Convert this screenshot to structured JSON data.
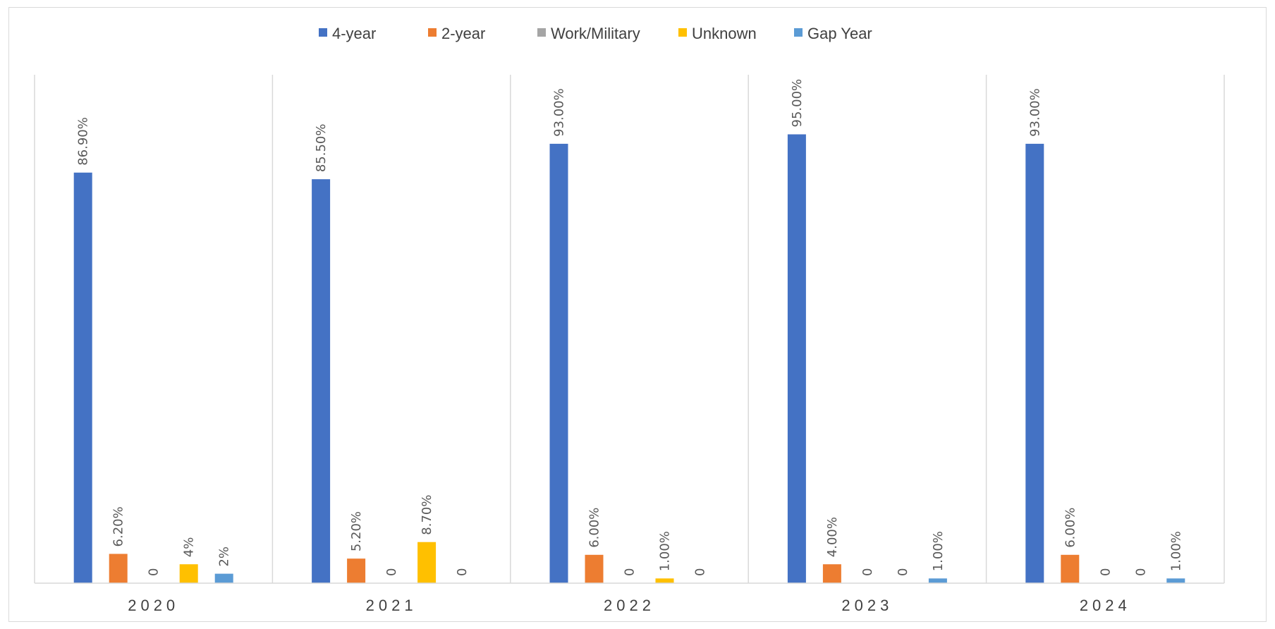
{
  "chart_data": {
    "type": "bar",
    "title": "",
    "xlabel": "",
    "ylabel": "",
    "ylim": [
      0,
      100
    ],
    "grid": "vertical separators between categories",
    "legend_position": "top-center",
    "categories": [
      "2020",
      "2021",
      "2022",
      "2023",
      "2024"
    ],
    "series": [
      {
        "name": "4-year",
        "color": "#4472C4",
        "values": [
          86.9,
          85.5,
          93.0,
          95.0,
          93.0
        ],
        "labels": [
          "86.90%",
          "85.50%",
          "93.00%",
          "95.00%",
          "93.00%"
        ]
      },
      {
        "name": "2-year",
        "color": "#ED7D31",
        "values": [
          6.2,
          5.2,
          6.0,
          4.0,
          6.0
        ],
        "labels": [
          "6.20%",
          "5.20%",
          "6.00%",
          "4.00%",
          "6.00%"
        ]
      },
      {
        "name": "Work/Military",
        "color": "#A5A5A5",
        "values": [
          0,
          0,
          0,
          0,
          0
        ],
        "labels": [
          "0",
          "0",
          "0",
          "0",
          "0"
        ]
      },
      {
        "name": "Unknown",
        "color": "#FFC000",
        "values": [
          4,
          8.7,
          1.0,
          0,
          0
        ],
        "labels": [
          "4%",
          "8.70%",
          "1.00%",
          "0",
          "0"
        ]
      },
      {
        "name": "Gap Year",
        "color": "#5B9BD5",
        "values": [
          2,
          0,
          0,
          1.0,
          1.0
        ],
        "labels": [
          "2%",
          "0",
          "0",
          "1.00%",
          "1.00%"
        ]
      }
    ]
  }
}
